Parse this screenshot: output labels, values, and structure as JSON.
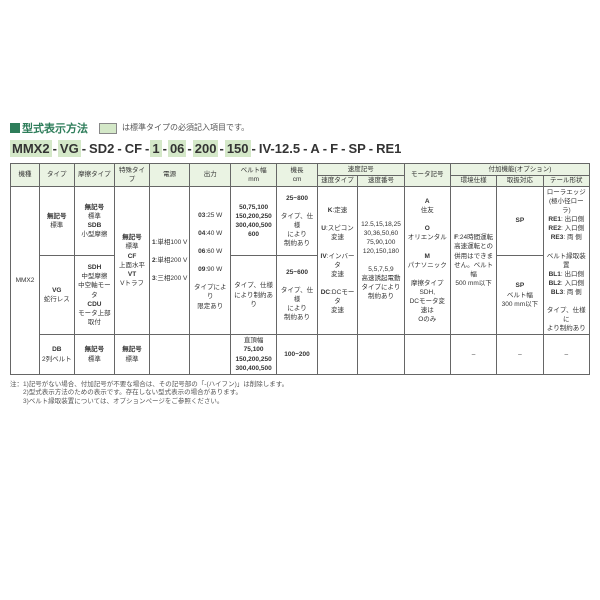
{
  "title": "型式表示方法",
  "legend": "は標準タイプの必須記入項目です。",
  "model": [
    "MMX2",
    "VG",
    "SD2",
    "CF",
    "1",
    "06",
    "200",
    "150",
    "IV-12.5",
    "A",
    "F",
    "SP",
    "RE1"
  ],
  "hl_idx": [
    0,
    1,
    4,
    5,
    6,
    7
  ],
  "headers_top": [
    "機種",
    "タイプ",
    "摩擦タイプ",
    "特殊タイプ",
    "電源",
    "出力",
    "ベルト幅\nmm",
    "機長\ncm",
    "速度記号",
    "",
    "モータ記号",
    "付加機能(オプション)",
    "",
    ""
  ],
  "headers_sub": {
    "8": "速度タイプ",
    "9": "速度番号",
    "11": "環境仕様",
    "12": "取扱対応",
    "13": "テール形状"
  },
  "rows": [
    {
      "c0": {
        "text": "MMX2",
        "rs": 3
      },
      "c1": "<b>無記号</b>\n標準",
      "c2": "<b>無記号</b>\n標準\n<b>SDB</b>\n小型摩擦",
      "c3": {
        "text": "<b>無記号</b>\n標準\n<b>CF</b>\n上面水平\n<b>VT</b>\nVトラフ",
        "rs": 2
      },
      "c4": {
        "text": "<b>1</b>:単相100 V\n\n<b>2</b>:単相200 V\n\n<b>3</b>:三相200 V",
        "rs": 2
      },
      "c5": {
        "text": "<b>03</b>:25 W\n\n<b>04</b>:40 W\n\n<b>06</b>:60 W\n\n<b>09</b>:90 W\n\nタイプにより\n限定あり",
        "rs": 2
      },
      "c6": "<b>50,75,100\n150,200,250\n300,400,500\n600</b>",
      "c7": "<b>25~800</b>\n\nタイプ、仕様\nにより\n制約あり",
      "c8": {
        "text": "<b>K</b>:定速\n\n<b>U</b>:スピコン\n変速\n\n<b>IV</b>:インバータ\n変速\n\n<b>DC</b>:DCモータ\n変速",
        "rs": 2
      },
      "c9": {
        "text": "12.5,15,18,25\n30,36,50,60\n75,90,100\n120,150,180\n\n5,5,7,5,9\n高速誘起電動\nタイプにより\n制約あり",
        "rs": 2
      },
      "c10": {
        "text": "<b>A</b>\n住友\n\n<b>O</b>\nオリエンタル\n\n<b>M</b>\nパナソニック\n\n摩擦タイプSDH,\nDCモータ変速は\nOのみ",
        "rs": 2
      },
      "c11": {
        "text": "<b>F</b>:24時間運転\n高速運転との\n併用はできま\nせん。ベルト幅\n500 mm以下",
        "rs": 2
      },
      "c12": "<b>SP</b>",
      "c13": {
        "text": "ローラエッジ\n(極小径ローラ)\n<b>RE1</b>: 出口側\n<b>RE2</b>: 入口側\n<b>RE3</b>: 両 側\n\nベルト縁取装置\n<b>BL1</b>: 出口側\n<b>BL2</b>: 入口側\n<b>BL3</b>: 両 側\n\nタイプ、仕様に\nより制約あり",
        "rs": 2
      }
    },
    {
      "c1": "<b>VG</b>\n蛇行レス",
      "c2": "<b>SDH</b>\n中型摩擦\n中空軸モータ\n<b>CDU</b>\nモータ上部取付",
      "c6": "タイプ、仕様\nにより制約あり",
      "c7": "<b>25~600</b>\n\nタイプ、仕様\nにより\n制約あり",
      "c12": "<b>SP</b>\nベルト幅\n300 mm以下"
    },
    {
      "c1": "<b>DB</b>\n2列ベルト",
      "c2": "<b>無記号</b>\n標準",
      "c3": "<b>無記号</b>\n標準",
      "c4": "",
      "c5": "",
      "c6": "直頂幅\n<b>75,100\n150,200,250\n300,400,500</b>",
      "c7": "<b>100~200</b>",
      "c8": "",
      "c9": "",
      "c10": "",
      "c11": "–",
      "c12": "–",
      "c13": "–"
    }
  ],
  "notes": [
    "注：1)記号がない場合、付加記号が不要な場合は、その記号部の「-(ハイフン)」は削除します。",
    "　　2)型式表示方法のための表示です。存在しない型式表示の場合があります。",
    "　　3)ベルト縁取装置については、オプションページをご参照ください。"
  ],
  "colors": {
    "accent": "#2e7d5a",
    "highlight": "#d4e8c8",
    "header_bg": "#eaf3e3"
  },
  "colwidths": [
    "5%",
    "6%",
    "7%",
    "6%",
    "7%",
    "7%",
    "8%",
    "7%",
    "7%",
    "8%",
    "8%",
    "8%",
    "8%",
    "8%"
  ]
}
